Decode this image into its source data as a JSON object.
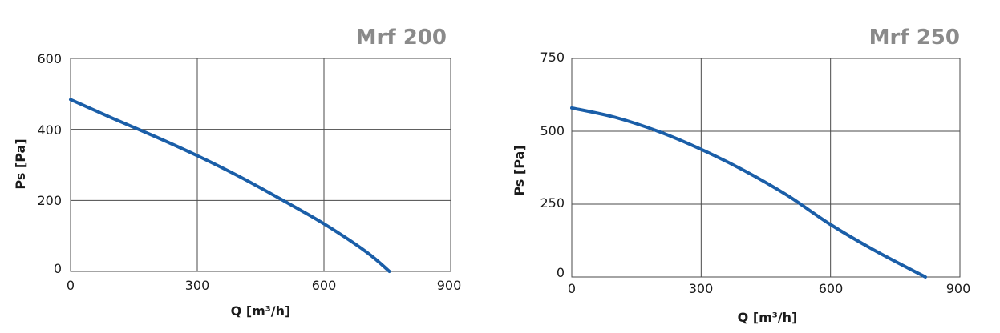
{
  "colors": {
    "curve": "#1a5ea8",
    "title": "#8a8a8a",
    "grid": "#4a4a4a"
  },
  "chart_data": [
    {
      "type": "line",
      "title": "Mrf 200",
      "xlabel": "Q [m³/h]",
      "ylabel": "Ps [Pa]",
      "xlim": [
        0,
        900
      ],
      "ylim": [
        0,
        600
      ],
      "xticks": [
        0,
        300,
        600,
        900
      ],
      "yticks": [
        0,
        200,
        400,
        600
      ],
      "xtick_labels": [
        "0",
        "300",
        "600",
        "900"
      ],
      "ytick_labels": [
        "0",
        "200",
        "400",
        "600"
      ],
      "grid": true,
      "series": [
        {
          "x": [
            0,
            100,
            200,
            300,
            400,
            500,
            600,
            700,
            755
          ],
          "y": [
            484,
            431,
            380,
            326,
            267,
            202,
            134,
            55,
            0
          ]
        }
      ]
    },
    {
      "type": "line",
      "title": "Mrf 250",
      "xlabel": "Q [m³/h]",
      "ylabel": "Ps [Pa]",
      "xlim": [
        0,
        900
      ],
      "ylim": [
        0,
        750
      ],
      "xticks": [
        0,
        300,
        600,
        900
      ],
      "yticks": [
        0,
        250,
        500,
        750
      ],
      "xtick_labels": [
        "0",
        "300",
        "600",
        "900"
      ],
      "ytick_labels": [
        "0",
        "250",
        "500",
        "750"
      ],
      "grid": true,
      "series": [
        {
          "x": [
            0,
            100,
            200,
            300,
            400,
            500,
            600,
            700,
            820
          ],
          "y": [
            580,
            548,
            500,
            438,
            365,
            280,
            180,
            93,
            0
          ]
        }
      ]
    }
  ]
}
